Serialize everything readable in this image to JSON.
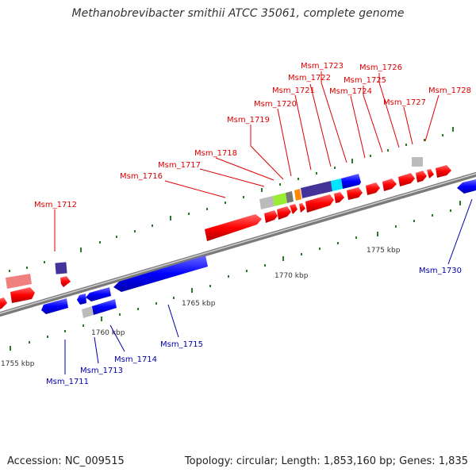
{
  "title": "Methanobrevibacter smithii ATCC 35061, complete genome",
  "footer": {
    "accession": "Accession: NC_009515",
    "stats": "Topology: circular; Length: 1,853,160 bp; Genes: 1,835"
  },
  "kbp_labels": [
    "1755 kbp",
    "1760 kbp",
    "1765 kbp",
    "1770 kbp",
    "1775 kbp"
  ],
  "forward_gene_labels": [
    "Msm_1712",
    "Msm_1716",
    "Msm_1717",
    "Msm_1718",
    "Msm_1719",
    "Msm_1720",
    "Msm_1721",
    "Msm_1722",
    "Msm_1723",
    "Msm_1724",
    "Msm_1725",
    "Msm_1726",
    "Msm_1727",
    "Msm_1728"
  ],
  "reverse_gene_labels": [
    "Msm_1711",
    "Msm_1713",
    "Msm_1714",
    "Msm_1715",
    "Msm_1730"
  ],
  "colors": {
    "forward_strand": "#ff0000",
    "reverse_strand": "#0000ff",
    "forward_label": "#dd0000",
    "reverse_label": "#0000aa",
    "tick": "#2a7a2a",
    "backbone": "#888888"
  }
}
